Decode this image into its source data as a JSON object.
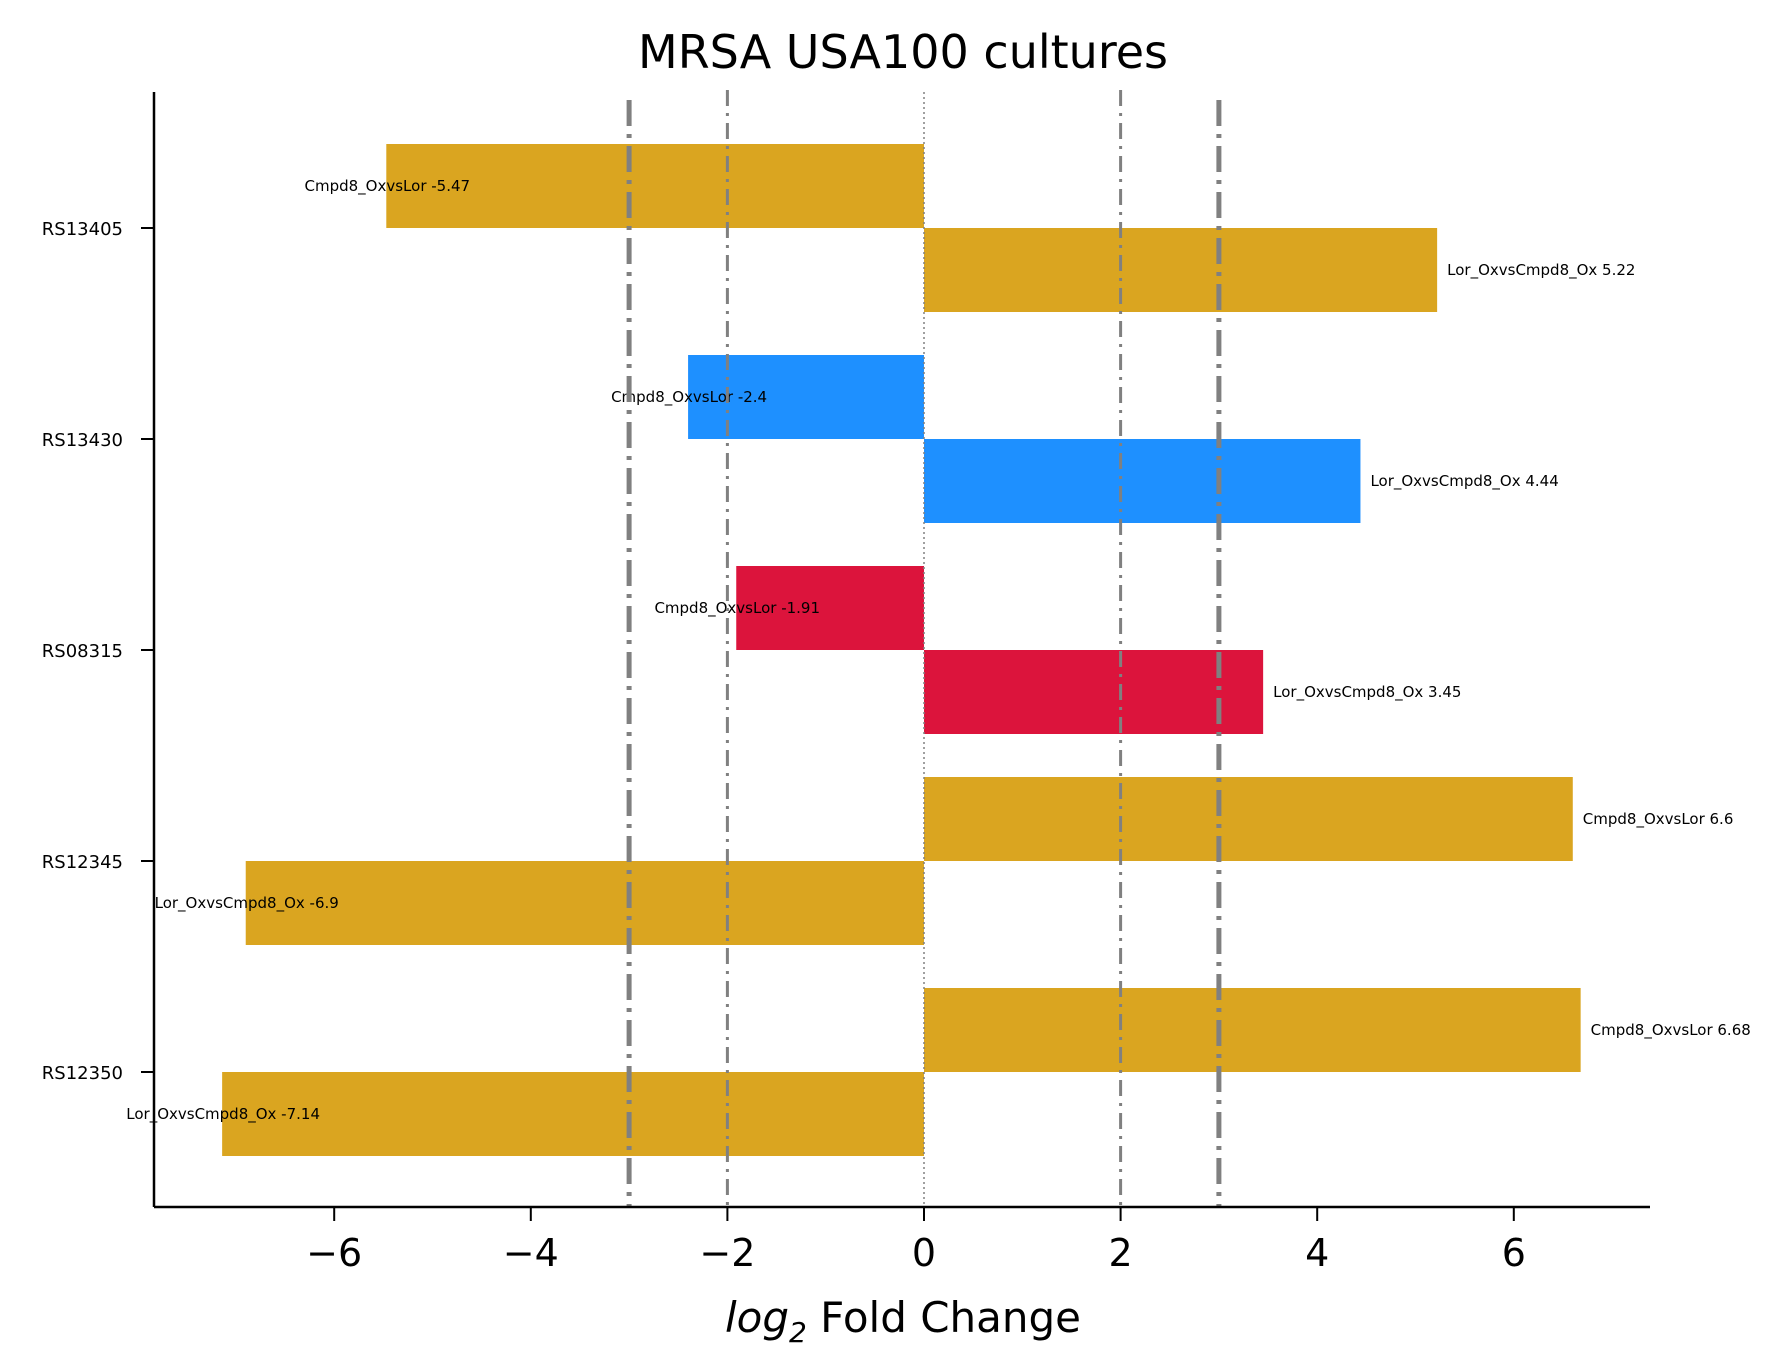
{
  "chart_data": {
    "type": "bar",
    "orientation": "horizontal",
    "title": "MRSA USA100 cultures",
    "xlabel_italic": "log",
    "xlabel_sub": "2",
    "xlabel_rest": " Fold Change",
    "xlim": [
      -7.5,
      7.4
    ],
    "xticks": [
      -6,
      -4,
      -2,
      0,
      2,
      4,
      6
    ],
    "xtick_labels": [
      "−6",
      "−4",
      "−2",
      "0",
      "2",
      "4",
      "6"
    ],
    "grid": false,
    "reference_lines": [
      {
        "x": -3,
        "style": "dashdot-thick"
      },
      {
        "x": -2,
        "style": "dashdot-thin"
      },
      {
        "x": 0,
        "style": "dotted"
      },
      {
        "x": 2,
        "style": "dashdot-thin"
      },
      {
        "x": 3,
        "style": "dashdot-thick"
      }
    ],
    "categories": [
      "RS13405",
      "RS13430",
      "RS08315",
      "RS12345",
      "RS12350"
    ],
    "groups": [
      {
        "category": "RS13405",
        "color": "#DAA520",
        "bars": [
          {
            "label": "Cmpd8_OxvsLor -5.47",
            "value": -5.47
          },
          {
            "label": "Lor_OxvsCmpd8_Ox 5.22",
            "value": 5.22
          }
        ]
      },
      {
        "category": "RS13430",
        "color": "#1E90FF",
        "bars": [
          {
            "label": "Cmpd8_OxvsLor -2.4",
            "value": -2.4
          },
          {
            "label": "Lor_OxvsCmpd8_Ox 4.44",
            "value": 4.44
          }
        ]
      },
      {
        "category": "RS08315",
        "color": "#DC143C",
        "bars": [
          {
            "label": "Cmpd8_OxvsLor -1.91",
            "value": -1.91
          },
          {
            "label": "Lor_OxvsCmpd8_Ox 3.45",
            "value": 3.45
          }
        ]
      },
      {
        "category": "RS12345",
        "color": "#DAA520",
        "bars": [
          {
            "label": "Cmpd8_OxvsLor 6.6",
            "value": 6.6
          },
          {
            "label": "Lor_OxvsCmpd8_Ox -6.9",
            "value": -6.9
          }
        ]
      },
      {
        "category": "RS12350",
        "color": "#DAA520",
        "bars": [
          {
            "label": "Cmpd8_OxvsLor 6.68",
            "value": 6.68
          },
          {
            "label": "Lor_OxvsCmpd8_Ox -7.14",
            "value": -7.14
          }
        ]
      }
    ],
    "colors": {
      "axis": "#000000",
      "reference_line": "#808080"
    }
  }
}
